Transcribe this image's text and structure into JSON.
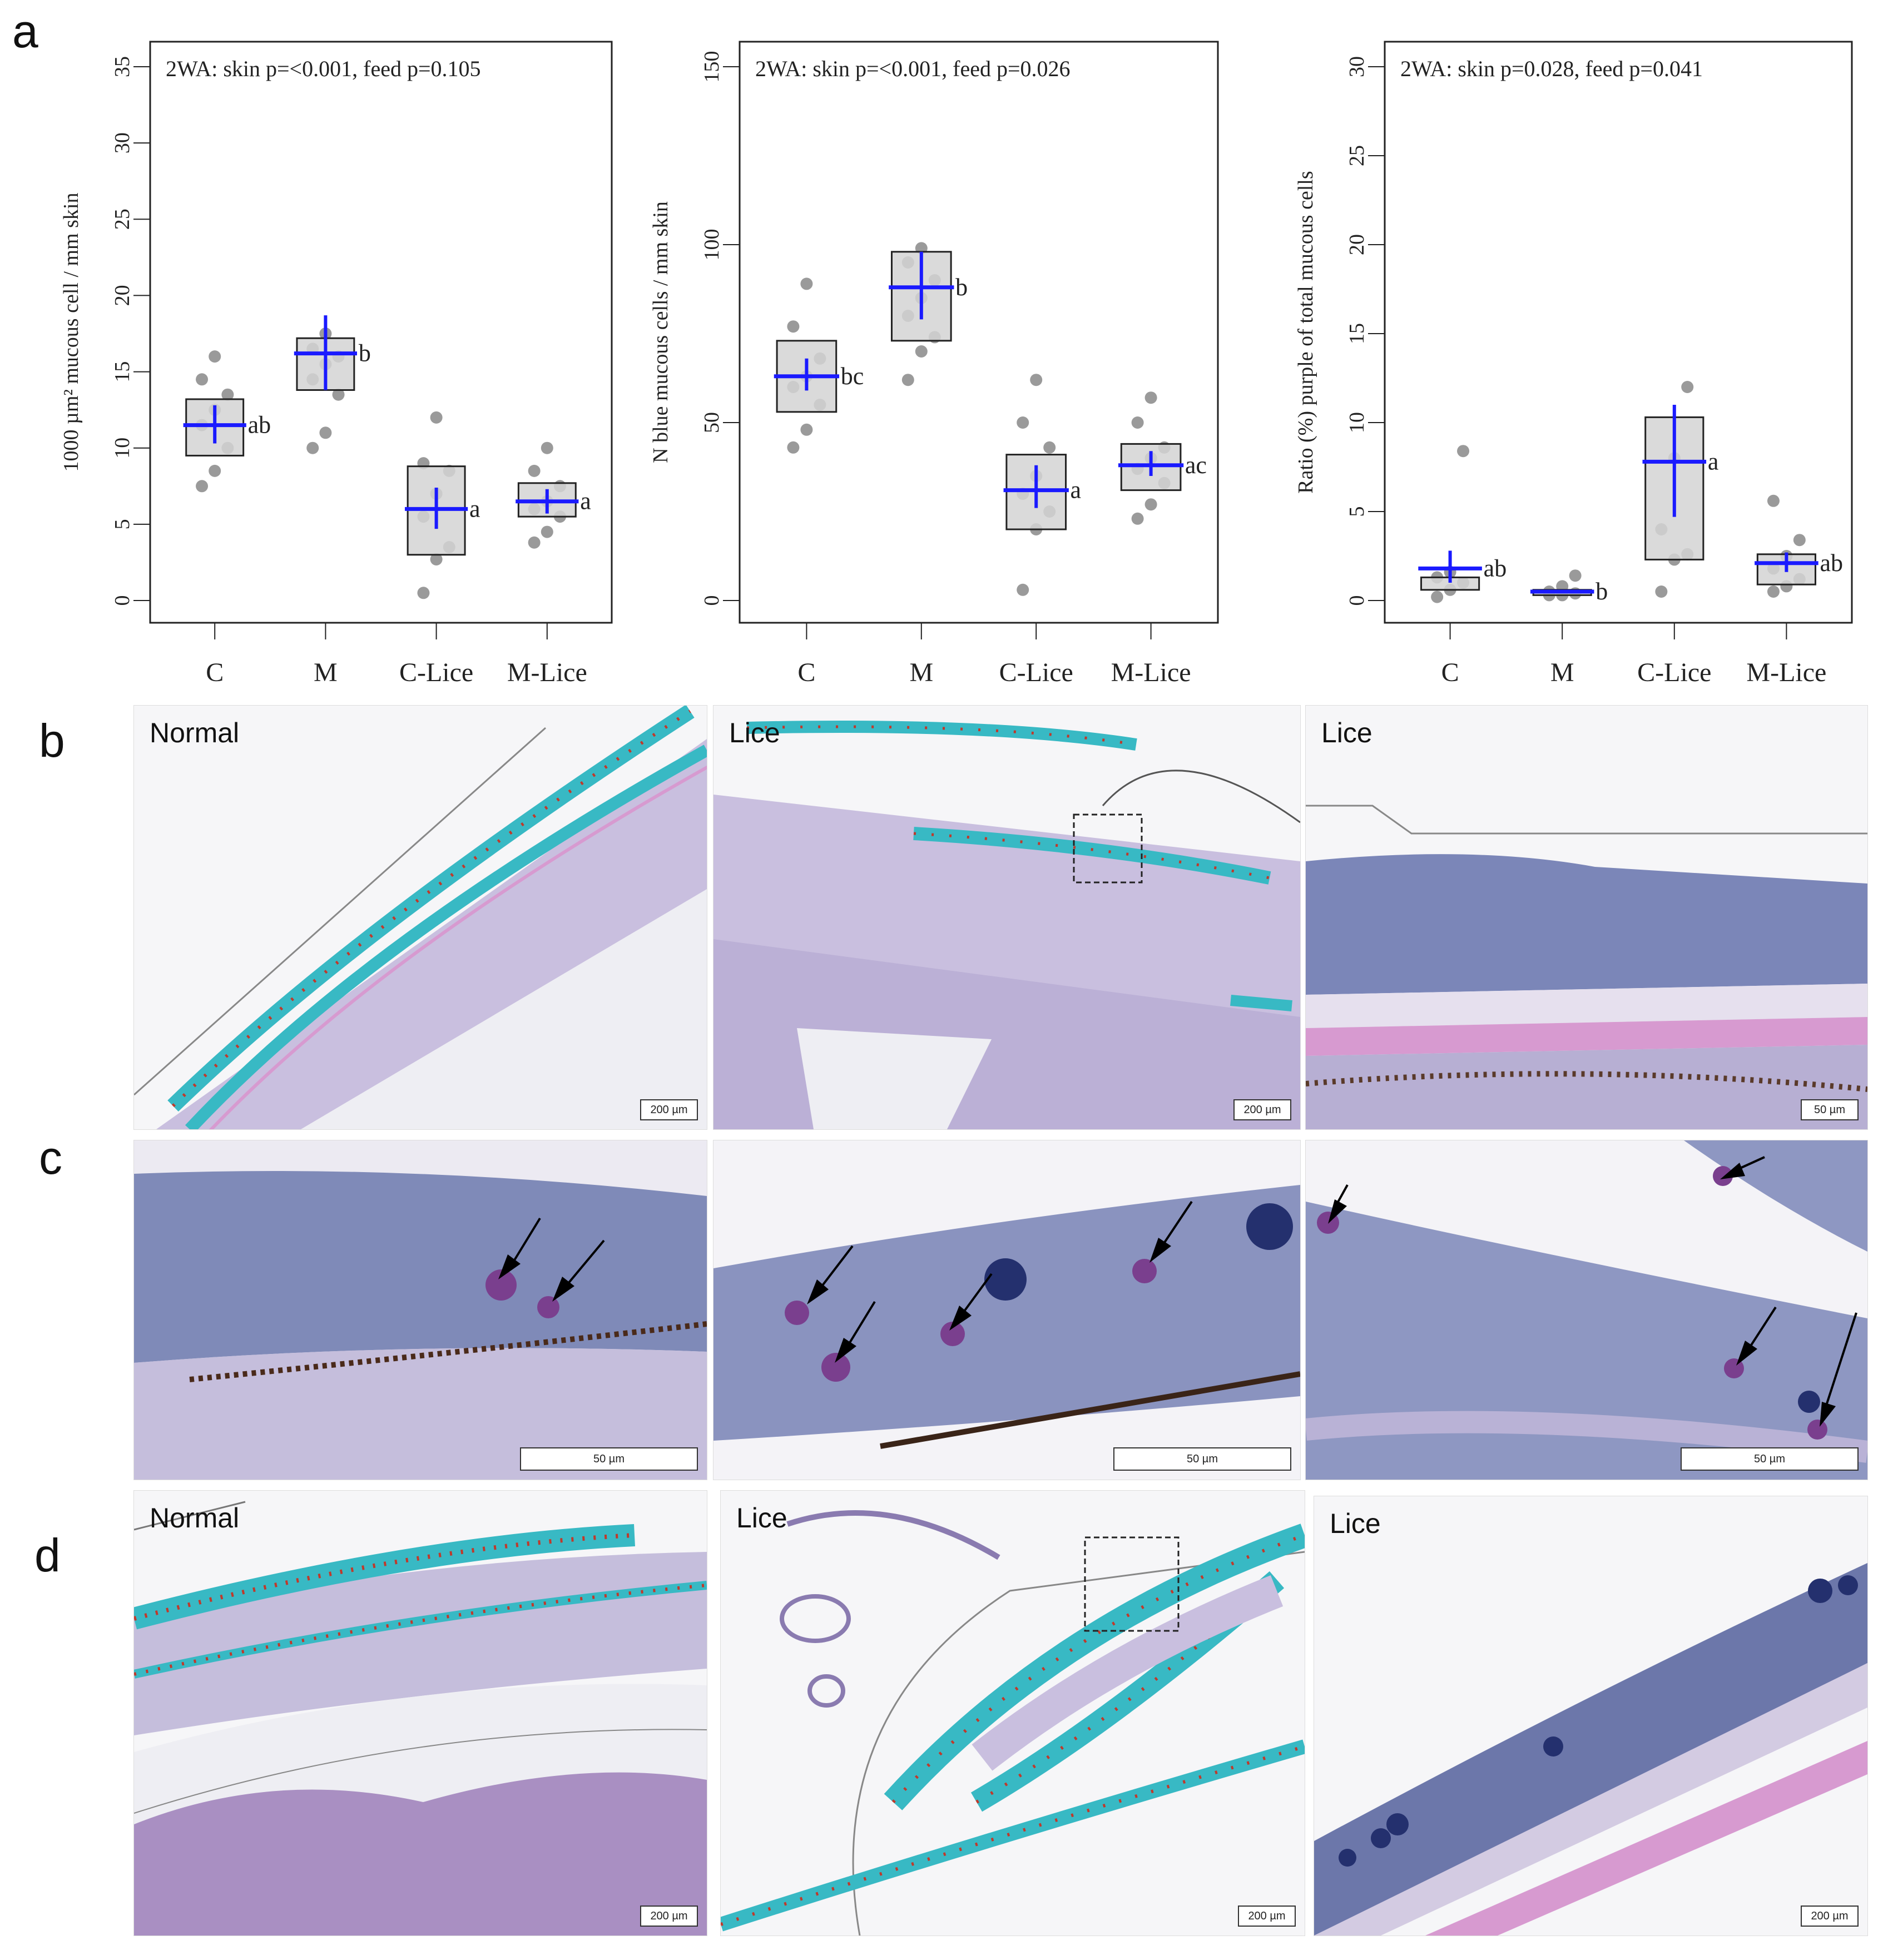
{
  "figure": {
    "panel_letters": {
      "a": "a",
      "b": "b",
      "c": "c",
      "d": "d"
    }
  },
  "colors": {
    "box_fill": "#d3d3d3",
    "mean_marker": "#1a1aff",
    "dots": "#9a9a9a",
    "stain_teal": "#38b9c4",
    "stain_red_dots": "#c0392b",
    "tissue_purple": "#a79bc9",
    "tissue_pink": "#d79ad0",
    "cell_dark_blue": "#24306e"
  },
  "chart_data": [
    {
      "type": "boxplot",
      "title": "2WA: skin p=<0.001, feed p=0.105",
      "ylabel": "1000 µm² mucous cell / mm skin",
      "xlabel": "",
      "ylim": [
        0,
        35
      ],
      "yticks": [
        0,
        5,
        10,
        15,
        20,
        25,
        30,
        35
      ],
      "categories": [
        "C",
        "M",
        "C-Lice",
        "M-Lice"
      ],
      "boxes": [
        {
          "low": 9.5,
          "high": 13.2,
          "mean": 11.5,
          "err_low": 10.3,
          "err_high": 12.8
        },
        {
          "low": 13.8,
          "high": 17.2,
          "mean": 16.2,
          "err_low": 13.8,
          "err_high": 18.7
        },
        {
          "low": 3.0,
          "high": 8.8,
          "mean": 6.0,
          "err_low": 4.7,
          "err_high": 7.4
        },
        {
          "low": 5.5,
          "high": 7.7,
          "mean": 6.5,
          "err_low": 5.7,
          "err_high": 7.3
        }
      ],
      "points": [
        [
          7.5,
          8.5,
          10.0,
          11.5,
          12.5,
          13.5,
          14.5,
          16.0
        ],
        [
          10.0,
          11.0,
          13.5,
          14.5,
          15.5,
          16.0,
          16.5,
          17.5
        ],
        [
          0.5,
          2.7,
          3.5,
          5.5,
          7.0,
          8.5,
          9.0,
          12.0
        ],
        [
          3.8,
          4.5,
          5.5,
          6.0,
          6.5,
          7.5,
          8.5,
          10.0
        ]
      ],
      "letters": [
        "ab",
        "b",
        "a",
        "a"
      ]
    },
    {
      "type": "boxplot",
      "title": "2WA: skin p=<0.001, feed p=0.026",
      "ylabel": "N blue mucous cells / mm skin",
      "xlabel": "",
      "ylim": [
        0,
        150
      ],
      "yticks": [
        0,
        50,
        100,
        150
      ],
      "categories": [
        "C",
        "M",
        "C-Lice",
        "M-Lice"
      ],
      "boxes": [
        {
          "low": 53,
          "high": 73,
          "mean": 63,
          "err_low": 59,
          "err_high": 68
        },
        {
          "low": 73,
          "high": 98,
          "mean": 88,
          "err_low": 79,
          "err_high": 98
        },
        {
          "low": 20,
          "high": 41,
          "mean": 31,
          "err_low": 26,
          "err_high": 38
        },
        {
          "low": 31,
          "high": 44,
          "mean": 38,
          "err_low": 35,
          "err_high": 42
        }
      ],
      "points": [
        [
          43,
          48,
          55,
          60,
          63,
          68,
          77,
          89
        ],
        [
          62,
          70,
          74,
          80,
          85,
          90,
          95,
          99
        ],
        [
          3,
          20,
          25,
          30,
          35,
          43,
          50,
          62
        ],
        [
          23,
          27,
          33,
          37,
          40,
          43,
          50,
          57
        ]
      ],
      "letters": [
        "bc",
        "b",
        "a",
        "ac"
      ]
    },
    {
      "type": "boxplot",
      "title": "2WA: skin p=0.028, feed p=0.041",
      "ylabel": "Ratio (%) purple of total mucous cells",
      "xlabel": "",
      "ylim": [
        0,
        30
      ],
      "yticks": [
        0,
        5,
        10,
        15,
        20,
        25,
        30
      ],
      "categories": [
        "C",
        "M",
        "C-Lice",
        "M-Lice"
      ],
      "boxes": [
        {
          "low": 0.6,
          "high": 1.3,
          "mean": 1.8,
          "err_low": 1.0,
          "err_high": 2.8
        },
        {
          "low": 0.3,
          "high": 0.6,
          "mean": 0.5,
          "err_low": 0.4,
          "err_high": 0.6
        },
        {
          "low": 2.3,
          "high": 10.3,
          "mean": 7.8,
          "err_low": 4.7,
          "err_high": 11.0
        },
        {
          "low": 0.9,
          "high": 2.6,
          "mean": 2.1,
          "err_low": 1.6,
          "err_high": 2.7
        }
      ],
      "points": [
        [
          0.2,
          0.6,
          1.0,
          1.3,
          1.6,
          8.4
        ],
        [
          0.3,
          0.3,
          0.4,
          0.5,
          0.8,
          1.4
        ],
        [
          0.5,
          2.3,
          2.6,
          4.0,
          8.0,
          12.0
        ],
        [
          0.5,
          0.8,
          1.2,
          1.8,
          2.5,
          3.4,
          5.6
        ]
      ],
      "letters": [
        "ab",
        "b",
        "a",
        "ab"
      ]
    }
  ],
  "micrographs": {
    "b": {
      "left_label": "Normal",
      "mid_label": "Lice",
      "right_label": "Lice",
      "left_scale": "200 µm",
      "mid_scale": "200 µm",
      "right_scale": "50 µm"
    },
    "c": {
      "left_scale": "50 µm",
      "mid_scale": "50 µm",
      "right_scale": "50 µm"
    },
    "d": {
      "left_label": "Normal",
      "mid_label": "Lice",
      "right_label": "Lice",
      "left_scale": "200 µm",
      "mid_scale": "200 µm",
      "right_scale": "200 µm"
    }
  }
}
